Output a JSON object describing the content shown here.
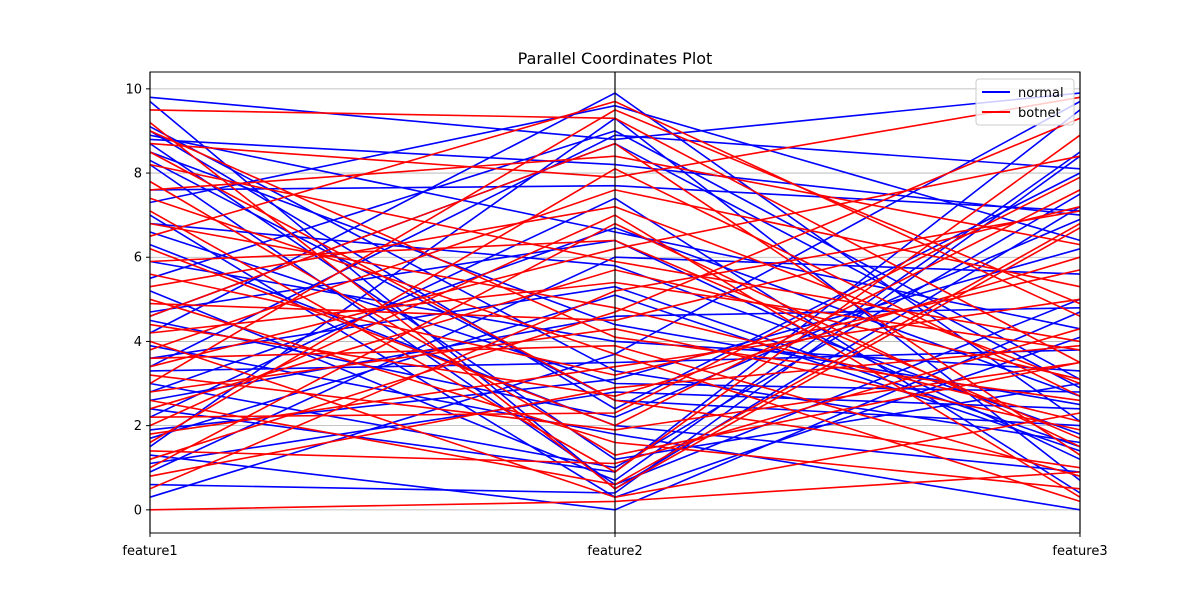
{
  "chart_data": {
    "type": "parallel_coordinates",
    "title": "Parallel Coordinates Plot",
    "axes": [
      "feature1",
      "feature2",
      "feature3"
    ],
    "ylim": [
      -0.55,
      10.4
    ],
    "yticks": [
      0,
      2,
      4,
      6,
      8,
      10
    ],
    "grid": "y",
    "legend": {
      "position": "top-right",
      "entries": [
        "normal",
        "botnet"
      ]
    },
    "series": [
      {
        "name": "normal",
        "color": "#0000ff",
        "lines": [
          [
            9.8,
            8.8,
            9.9
          ],
          [
            9.7,
            0.5,
            7.2
          ],
          [
            9.1,
            3.3,
            1.6
          ],
          [
            9.0,
            2.4,
            8.0
          ],
          [
            8.9,
            6.6,
            4.3
          ],
          [
            8.8,
            8.2,
            7.0
          ],
          [
            8.7,
            1.2,
            3.0
          ],
          [
            8.5,
            4.4,
            2.5
          ],
          [
            8.3,
            2.6,
            2.0
          ],
          [
            8.2,
            0.6,
            5.0
          ],
          [
            7.6,
            7.7,
            7.1
          ],
          [
            7.3,
            9.6,
            6.4
          ],
          [
            7.0,
            0.3,
            4.1
          ],
          [
            6.8,
            5.8,
            1.8
          ],
          [
            6.6,
            3.0,
            2.8
          ],
          [
            6.3,
            2.0,
            0.9
          ],
          [
            5.9,
            4.0,
            3.3
          ],
          [
            5.5,
            9.0,
            3.1
          ],
          [
            5.2,
            0.7,
            8.5
          ],
          [
            4.7,
            6.4,
            1.2
          ],
          [
            4.6,
            8.7,
            2.9
          ],
          [
            4.5,
            2.2,
            6.9
          ],
          [
            4.2,
            9.9,
            2.1
          ],
          [
            3.9,
            1.8,
            0.0
          ],
          [
            3.6,
            5.3,
            1.5
          ],
          [
            3.4,
            8.9,
            8.1
          ],
          [
            3.3,
            3.5,
            3.8
          ],
          [
            3.0,
            1.0,
            7.5
          ],
          [
            2.8,
            6.7,
            2.7
          ],
          [
            2.6,
            4.6,
            4.8
          ],
          [
            2.4,
            0.9,
            9.5
          ],
          [
            2.2,
            7.4,
            0.4
          ],
          [
            1.9,
            3.1,
            6.2
          ],
          [
            1.7,
            5.1,
            1.4
          ],
          [
            1.5,
            9.3,
            0.7
          ],
          [
            1.3,
            0.0,
            4.7
          ],
          [
            1.1,
            2.8,
            2.4
          ],
          [
            0.9,
            6.0,
            5.6
          ],
          [
            0.6,
            0.4,
            8.4
          ],
          [
            0.3,
            3.7,
            9.7
          ]
        ]
      },
      {
        "name": "botnet",
        "color": "#ff0000",
        "lines": [
          [
            9.5,
            9.3,
            3.5
          ],
          [
            9.2,
            0.5,
            6.7
          ],
          [
            9.0,
            4.1,
            2.6
          ],
          [
            8.7,
            7.9,
            9.8
          ],
          [
            8.5,
            2.6,
            1.0
          ],
          [
            8.2,
            5.9,
            4.0
          ],
          [
            7.8,
            1.3,
            3.5
          ],
          [
            7.6,
            8.4,
            6.3
          ],
          [
            7.4,
            3.7,
            0.2
          ],
          [
            7.1,
            0.9,
            8.9
          ],
          [
            6.8,
            4.8,
            2.1
          ],
          [
            6.5,
            9.7,
            4.6
          ],
          [
            6.2,
            2.0,
            7.6
          ],
          [
            5.9,
            6.4,
            1.7
          ],
          [
            5.6,
            3.2,
            5.7
          ],
          [
            5.3,
            7.2,
            3.0
          ],
          [
            5.0,
            1.6,
            0.5
          ],
          [
            4.9,
            4.5,
            7.2
          ],
          [
            4.6,
            8.7,
            1.3
          ],
          [
            4.4,
            2.7,
            6.0
          ],
          [
            4.2,
            5.4,
            3.8
          ],
          [
            4.0,
            0.3,
            2.3
          ],
          [
            3.8,
            7.6,
            5.3
          ],
          [
            3.6,
            3.9,
            0.8
          ],
          [
            3.4,
            6.2,
            8.4
          ],
          [
            3.2,
            1.9,
            3.5
          ],
          [
            3.0,
            9.5,
            4.9
          ],
          [
            2.8,
            4.3,
            1.9
          ],
          [
            2.6,
            0.6,
            6.8
          ],
          [
            2.4,
            5.7,
            3.1
          ],
          [
            2.2,
            2.3,
            7.9
          ],
          [
            2.0,
            7.0,
            0.3
          ],
          [
            1.8,
            3.4,
            5.0
          ],
          [
            1.6,
            8.1,
            2.7
          ],
          [
            1.4,
            1.1,
            4.3
          ],
          [
            1.2,
            4.7,
            9.3
          ],
          [
            1.0,
            6.8,
            1.5
          ],
          [
            0.8,
            2.9,
            3.9
          ],
          [
            0.5,
            5.2,
            7.1
          ],
          [
            0.0,
            0.2,
            0.9
          ]
        ]
      }
    ]
  }
}
